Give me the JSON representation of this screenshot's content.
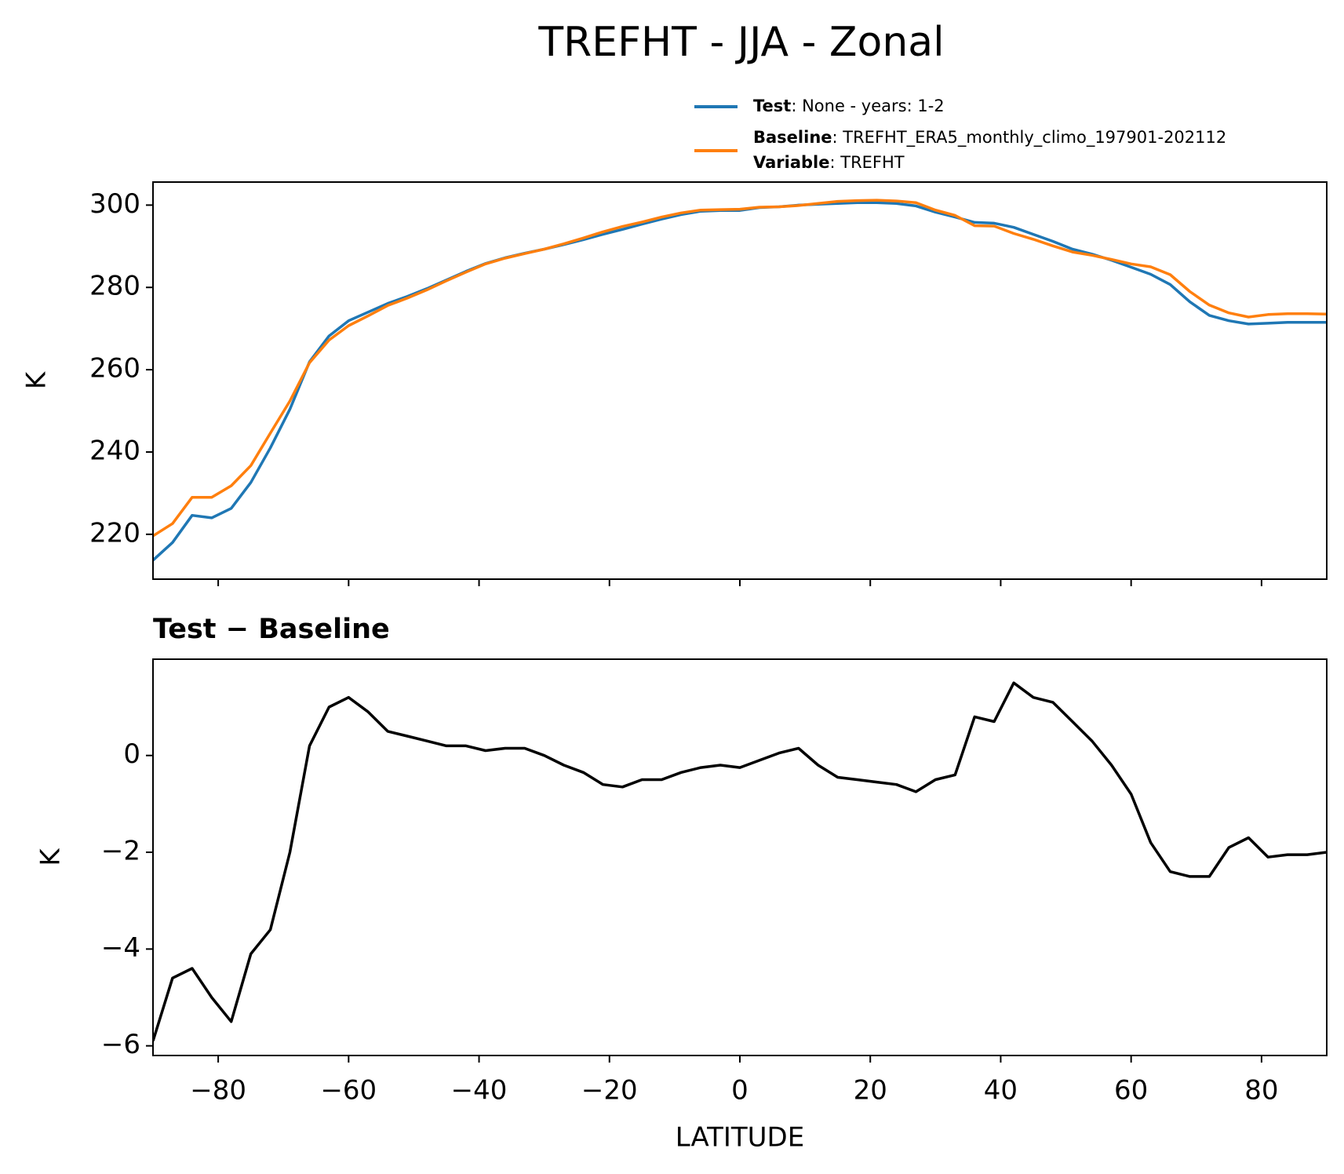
{
  "chart_data": [
    {
      "type": "line",
      "title": "TREFHT - JJA - Zonal",
      "ylabel": "K",
      "x": [
        -90,
        -87,
        -84,
        -81,
        -78,
        -75,
        -72,
        -69,
        -66,
        -63,
        -60,
        -57,
        -54,
        -51,
        -48,
        -45,
        -42,
        -39,
        -36,
        -33,
        -30,
        -27,
        -24,
        -21,
        -18,
        -15,
        -12,
        -9,
        -6,
        -3,
        0,
        3,
        6,
        9,
        12,
        15,
        18,
        21,
        24,
        27,
        30,
        33,
        36,
        39,
        42,
        45,
        48,
        51,
        54,
        57,
        60,
        63,
        66,
        69,
        72,
        75,
        78,
        81,
        84,
        87,
        90
      ],
      "series": [
        {
          "name": "Test",
          "detail": ": None - years: 1-2",
          "color": "#1f77b4",
          "values": [
            213.7,
            218,
            224.6,
            224,
            226.3,
            232.6,
            241,
            250.4,
            261.9,
            268.2,
            271.9,
            274,
            276.1,
            277.8,
            279.7,
            281.8,
            283.9,
            285.8,
            287.2,
            288.3,
            289.3,
            290.4,
            291.6,
            292.9,
            294.1,
            295.4,
            296.6,
            297.7,
            298.5,
            298.7,
            298.7,
            299.4,
            299.6,
            300,
            300.2,
            300.4,
            300.6,
            300.6,
            300.4,
            299.8,
            298.3,
            297.1,
            295.8,
            295.6,
            294.6,
            292.9,
            291.2,
            289.3,
            288.1,
            286.6,
            284.9,
            283.2,
            280.7,
            276.5,
            273.2,
            271.9,
            271.1,
            271.3,
            271.5,
            271.5,
            271.5
          ]
        },
        {
          "name": "Baseline",
          "detail": ": TREFHT_ERA5_monthly_climo_197901-202112",
          "extra": {
            "name": "Variable",
            "detail": ": TREFHT"
          },
          "color": "#ff7f0e",
          "values": [
            219.6,
            222.6,
            229.0,
            229.0,
            231.8,
            236.7,
            244.6,
            252.4,
            261.7,
            267.2,
            270.7,
            273.1,
            275.6,
            277.4,
            279.4,
            281.6,
            283.7,
            285.7,
            287.1,
            288.2,
            289.3,
            290.6,
            292.0,
            293.5,
            294.8,
            295.9,
            297.1,
            298.1,
            298.8,
            298.9,
            299.0,
            299.5,
            299.6,
            299.9,
            300.4,
            300.9,
            301.1,
            301.2,
            301.0,
            300.6,
            298.8,
            297.5,
            295.0,
            294.9,
            293.1,
            291.7,
            290.1,
            288.6,
            287.8,
            286.8,
            285.7,
            285.0,
            283.1,
            279.0,
            275.7,
            273.8,
            272.8,
            273.4,
            273.6,
            273.6,
            273.5
          ]
        }
      ],
      "xlim": [
        -90,
        90
      ],
      "ylim": [
        209.1,
        305.6
      ],
      "xticks": [
        -80,
        -60,
        -40,
        -20,
        0,
        20,
        40,
        60,
        80
      ],
      "yticks": [
        220,
        240,
        260,
        280,
        300
      ],
      "legend": "upper right outside"
    },
    {
      "type": "line",
      "title": "Test − Baseline",
      "ylabel": "K",
      "xlabel": "LATITUDE",
      "x": [
        -90,
        -87,
        -84,
        -81,
        -78,
        -75,
        -72,
        -69,
        -66,
        -63,
        -60,
        -57,
        -54,
        -51,
        -48,
        -45,
        -42,
        -39,
        -36,
        -33,
        -30,
        -27,
        -24,
        -21,
        -18,
        -15,
        -12,
        -9,
        -6,
        -3,
        0,
        3,
        6,
        9,
        12,
        15,
        18,
        21,
        24,
        27,
        30,
        33,
        36,
        39,
        42,
        45,
        48,
        51,
        54,
        57,
        60,
        63,
        66,
        69,
        72,
        75,
        78,
        81,
        84,
        87,
        90
      ],
      "series": [
        {
          "color": "#000000",
          "values": [
            -5.9,
            -4.6,
            -4.4,
            -5.0,
            -5.5,
            -4.1,
            -3.6,
            -2.0,
            0.2,
            1.0,
            1.2,
            0.9,
            0.5,
            0.4,
            0.3,
            0.2,
            0.2,
            0.1,
            0.15,
            0.15,
            0.0,
            -0.2,
            -0.35,
            -0.6,
            -0.65,
            -0.5,
            -0.5,
            -0.35,
            -0.25,
            -0.2,
            -0.25,
            -0.1,
            0.05,
            0.15,
            -0.2,
            -0.45,
            -0.5,
            -0.55,
            -0.6,
            -0.75,
            -0.5,
            -0.4,
            0.8,
            0.7,
            1.5,
            1.2,
            1.1,
            0.7,
            0.3,
            -0.2,
            -0.8,
            -1.8,
            -2.4,
            -2.5,
            -2.5,
            -1.9,
            -1.7,
            -2.1,
            -2.05,
            -2.05,
            -2.0
          ]
        }
      ],
      "xlim": [
        -90,
        90
      ],
      "ylim": [
        -6.2,
        1.99
      ],
      "xticks": [
        {
          "value": -80,
          "label": "−80"
        },
        {
          "value": -60,
          "label": "−60"
        },
        {
          "value": -40,
          "label": "−40"
        },
        {
          "value": -20,
          "label": "−20"
        },
        0,
        20,
        40,
        60,
        80
      ],
      "yticks": [
        {
          "value": -6,
          "label": "−6"
        },
        {
          "value": -4,
          "label": "−4"
        },
        {
          "value": -2,
          "label": "−2"
        },
        0
      ]
    }
  ]
}
